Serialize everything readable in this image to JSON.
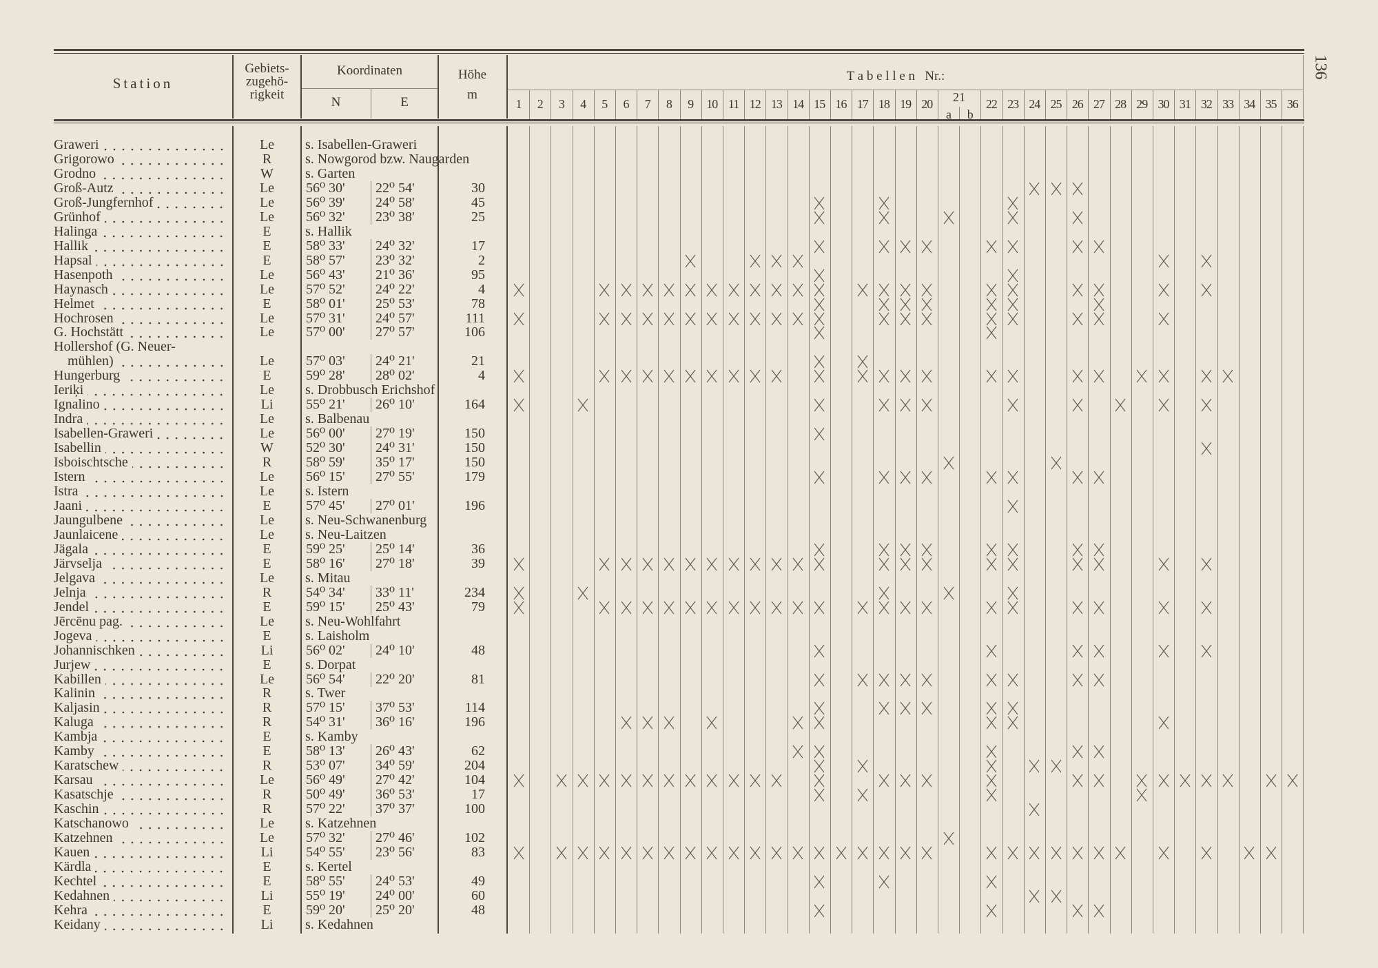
{
  "page_number": "136",
  "header": {
    "station": "Station",
    "region_line1": "Gebiets-",
    "region_line2": "zugehö-",
    "region_line3": "rigkeit",
    "coordinates": "Koordinaten",
    "north": "N",
    "east": "E",
    "height": "Höhe",
    "height_unit": "m",
    "tables": "T a b e l l e n   Nr.:",
    "col21_group": "21"
  },
  "table_columns": [
    {
      "id": "1",
      "label": "1"
    },
    {
      "id": "2",
      "label": "2"
    },
    {
      "id": "3",
      "label": "3"
    },
    {
      "id": "4",
      "label": "4"
    },
    {
      "id": "5",
      "label": "5"
    },
    {
      "id": "6",
      "label": "6"
    },
    {
      "id": "7",
      "label": "7"
    },
    {
      "id": "8",
      "label": "8"
    },
    {
      "id": "9",
      "label": "9"
    },
    {
      "id": "10",
      "label": "10"
    },
    {
      "id": "11",
      "label": "11"
    },
    {
      "id": "12",
      "label": "12"
    },
    {
      "id": "13",
      "label": "13"
    },
    {
      "id": "14",
      "label": "14"
    },
    {
      "id": "15",
      "label": "15"
    },
    {
      "id": "16",
      "label": "16"
    },
    {
      "id": "17",
      "label": "17"
    },
    {
      "id": "18",
      "label": "18"
    },
    {
      "id": "19",
      "label": "19"
    },
    {
      "id": "20",
      "label": "20"
    },
    {
      "id": "21a",
      "label": "a"
    },
    {
      "id": "21b",
      "label": "b"
    },
    {
      "id": "22",
      "label": "22"
    },
    {
      "id": "23",
      "label": "23"
    },
    {
      "id": "24",
      "label": "24"
    },
    {
      "id": "25",
      "label": "25"
    },
    {
      "id": "26",
      "label": "26"
    },
    {
      "id": "27",
      "label": "27"
    },
    {
      "id": "28",
      "label": "28"
    },
    {
      "id": "29",
      "label": "29"
    },
    {
      "id": "30",
      "label": "30"
    },
    {
      "id": "31",
      "label": "31"
    },
    {
      "id": "32",
      "label": "32"
    },
    {
      "id": "33",
      "label": "33"
    },
    {
      "id": "34",
      "label": "34"
    },
    {
      "id": "35",
      "label": "35"
    },
    {
      "id": "36",
      "label": "36"
    }
  ],
  "rows": [
    {
      "station": "Graweri",
      "region": "Le",
      "ref": "s. Isabellen-Graweri",
      "tables": []
    },
    {
      "station": "Grigorowo",
      "region": "R",
      "ref": "s. Nowgorod bzw. Naugarden",
      "tables": []
    },
    {
      "station": "Grodno",
      "region": "W",
      "ref": "s. Garten",
      "tables": []
    },
    {
      "station": "Groß-Autz",
      "region": "Le",
      "n": "56⁰ 30'",
      "e": "22⁰ 54'",
      "height": "30",
      "tables": [
        "24",
        "25",
        "26"
      ]
    },
    {
      "station": "Groß-Jungfernhof",
      "region": "Le",
      "n": "56⁰ 39'",
      "e": "24⁰ 58'",
      "height": "45",
      "tables": [
        "15",
        "18",
        "23"
      ]
    },
    {
      "station": "Grünhof",
      "region": "Le",
      "n": "56⁰ 32'",
      "e": "23⁰ 38'",
      "height": "25",
      "tables": [
        "15",
        "18",
        "21a",
        "23",
        "26"
      ]
    },
    {
      "station": "Halinga",
      "region": "E",
      "ref": "s. Hallik",
      "tables": []
    },
    {
      "station": "Hallik",
      "region": "E",
      "n": "58⁰ 33'",
      "e": "24⁰ 32'",
      "height": "17",
      "tables": [
        "15",
        "18",
        "19",
        "20",
        "22",
        "23",
        "26",
        "27"
      ]
    },
    {
      "station": "Hapsal",
      "region": "E",
      "n": "58⁰ 57'",
      "e": "23⁰ 32'",
      "height": "2",
      "tables": [
        "9",
        "12",
        "13",
        "14",
        "30",
        "32"
      ]
    },
    {
      "station": "Hasenpoth",
      "region": "Le",
      "n": "56⁰ 43'",
      "e": "21⁰ 36'",
      "height": "95",
      "tables": [
        "15",
        "23"
      ]
    },
    {
      "station": "Haynasch",
      "region": "Le",
      "n": "57⁰ 52'",
      "e": "24⁰ 22'",
      "height": "4",
      "tables": [
        "1",
        "5",
        "6",
        "7",
        "8",
        "9",
        "10",
        "11",
        "12",
        "13",
        "14",
        "15",
        "17",
        "18",
        "19",
        "20",
        "22",
        "23",
        "26",
        "27",
        "30",
        "32"
      ]
    },
    {
      "station": "Helmet",
      "region": "E",
      "n": "58⁰ 01'",
      "e": "25⁰ 53'",
      "height": "78",
      "tables": [
        "15",
        "18",
        "19",
        "20",
        "22",
        "23",
        "27"
      ]
    },
    {
      "station": "Hochrosen",
      "region": "Le",
      "n": "57⁰ 31'",
      "e": "24⁰ 57'",
      "height": "111",
      "tables": [
        "1",
        "5",
        "6",
        "7",
        "8",
        "9",
        "10",
        "11",
        "12",
        "13",
        "14",
        "15",
        "18",
        "19",
        "20",
        "22",
        "23",
        "26",
        "27",
        "30"
      ]
    },
    {
      "station": "G. Hochstätt",
      "region": "Le",
      "n": "57⁰ 00'",
      "e": "27⁰ 57'",
      "height": "106",
      "tables": [
        "15",
        "22"
      ]
    },
    {
      "station": "Hollershof (G. Neuer-",
      "station_cont": "mühlen)",
      "region": "Le",
      "n": "57⁰ 03'",
      "e": "24⁰ 21'",
      "height": "21",
      "tables": [
        "15",
        "17"
      ]
    },
    {
      "station": "Hungerburg",
      "region": "E",
      "n": "59⁰ 28'",
      "e": "28⁰ 02'",
      "height": "4",
      "tables": [
        "1",
        "5",
        "6",
        "7",
        "8",
        "9",
        "10",
        "11",
        "12",
        "13",
        "15",
        "17",
        "18",
        "19",
        "20",
        "22",
        "23",
        "26",
        "27",
        "29",
        "30",
        "32",
        "33"
      ]
    },
    {
      "station": "Ieriķi",
      "region": "Le",
      "ref": "s. Drobbusch Erichshof",
      "tables": []
    },
    {
      "station": "Ignalino",
      "region": "Li",
      "n": "55⁰ 21'",
      "e": "26⁰ 10'",
      "height": "164",
      "tables": [
        "1",
        "4",
        "15",
        "18",
        "19",
        "20",
        "23",
        "26",
        "28",
        "30",
        "32"
      ]
    },
    {
      "station": "Indra",
      "region": "Le",
      "ref": "s. Balbenau",
      "tables": []
    },
    {
      "station": "Isabellen-Graweri",
      "region": "Le",
      "n": "56⁰ 00'",
      "e": "27⁰ 19'",
      "height": "150",
      "tables": [
        "15"
      ]
    },
    {
      "station": "Isabellin",
      "region": "W",
      "n": "52⁰ 30'",
      "e": "24⁰ 31'",
      "height": "150",
      "tables": [
        "32"
      ]
    },
    {
      "station": "Isboischtsche",
      "region": "R",
      "n": "58⁰ 59'",
      "e": "35⁰ 17'",
      "height": "150",
      "tables": [
        "21a",
        "25"
      ]
    },
    {
      "station": "Istern",
      "region": "Le",
      "n": "56⁰ 15'",
      "e": "27⁰ 55'",
      "height": "179",
      "tables": [
        "15",
        "18",
        "19",
        "20",
        "22",
        "23",
        "26",
        "27"
      ]
    },
    {
      "station": "Istra",
      "region": "Le",
      "ref": "s. Istern",
      "tables": []
    },
    {
      "station": "Jaani",
      "region": "E",
      "n": "57⁰ 45'",
      "e": "27⁰ 01'",
      "height": "196",
      "tables": [
        "23"
      ]
    },
    {
      "station": "Jaungulbene",
      "region": "Le",
      "ref": "s. Neu-Schwanenburg",
      "tables": []
    },
    {
      "station": "Jaunlaicene",
      "region": "Le",
      "ref": "s. Neu-Laitzen",
      "tables": []
    },
    {
      "station": "Jägala",
      "region": "E",
      "n": "59⁰ 25'",
      "e": "25⁰ 14'",
      "height": "36",
      "tables": [
        "15",
        "18",
        "19",
        "20",
        "22",
        "23",
        "26",
        "27"
      ]
    },
    {
      "station": "Järvselja",
      "region": "E",
      "n": "58⁰ 16'",
      "e": "27⁰ 18'",
      "height": "39",
      "tables": [
        "1",
        "5",
        "6",
        "7",
        "8",
        "9",
        "10",
        "11",
        "12",
        "13",
        "14",
        "15",
        "18",
        "19",
        "20",
        "22",
        "23",
        "26",
        "27",
        "30",
        "32"
      ]
    },
    {
      "station": "Jelgava",
      "region": "Le",
      "ref": "s. Mitau",
      "tables": []
    },
    {
      "station": "Jelnja",
      "region": "R",
      "n": "54⁰ 34'",
      "e": "33⁰ 11'",
      "height": "234",
      "tables": [
        "1",
        "4",
        "18",
        "21a",
        "23"
      ]
    },
    {
      "station": "Jendel",
      "region": "E",
      "n": "59⁰ 15'",
      "e": "25⁰ 43'",
      "height": "79",
      "tables": [
        "1",
        "5",
        "6",
        "7",
        "8",
        "9",
        "10",
        "11",
        "12",
        "13",
        "14",
        "15",
        "17",
        "18",
        "19",
        "20",
        "22",
        "23",
        "26",
        "27",
        "30",
        "32"
      ]
    },
    {
      "station": "Jērcēnu pag.",
      "region": "Le",
      "ref": "s. Neu-Wohlfahrt",
      "tables": []
    },
    {
      "station": "Jogeva",
      "region": "E",
      "ref": "s. Laisholm",
      "tables": []
    },
    {
      "station": "Johannischken",
      "region": "Li",
      "n": "56⁰ 02'",
      "e": "24⁰ 10'",
      "height": "48",
      "tables": [
        "15",
        "22",
        "26",
        "27",
        "30",
        "32"
      ]
    },
    {
      "station": "Jurjew",
      "region": "E",
      "ref": "s. Dorpat",
      "tables": []
    },
    {
      "station": "Kabillen",
      "region": "Le",
      "n": "56⁰ 54'",
      "e": "22⁰ 20'",
      "height": "81",
      "tables": [
        "15",
        "17",
        "18",
        "19",
        "20",
        "22",
        "23",
        "26",
        "27"
      ]
    },
    {
      "station": "Kalinin",
      "region": "R",
      "ref": "s. Twer",
      "tables": []
    },
    {
      "station": "Kaljasin",
      "region": "R",
      "n": "57⁰ 15'",
      "e": "37⁰ 53'",
      "height": "114",
      "tables": [
        "15",
        "18",
        "19",
        "20",
        "22",
        "23"
      ]
    },
    {
      "station": "Kaluga",
      "region": "R",
      "n": "54⁰ 31'",
      "e": "36⁰ 16'",
      "height": "196",
      "tables": [
        "6",
        "7",
        "8",
        "10",
        "14",
        "15",
        "22",
        "23",
        "30"
      ]
    },
    {
      "station": "Kambja",
      "region": "E",
      "ref": "s. Kamby",
      "tables": []
    },
    {
      "station": "Kamby",
      "region": "E",
      "n": "58⁰ 13'",
      "e": "26⁰ 43'",
      "height": "62",
      "tables": [
        "14",
        "15",
        "22",
        "26",
        "27"
      ]
    },
    {
      "station": "Karatschew",
      "region": "R",
      "n": "53⁰ 07'",
      "e": "34⁰ 59'",
      "height": "204",
      "tables": [
        "15",
        "17",
        "22",
        "24",
        "25"
      ]
    },
    {
      "station": "Karsau",
      "region": "Le",
      "n": "56⁰ 49'",
      "e": "27⁰ 42'",
      "height": "104",
      "tables": [
        "1",
        "3",
        "4",
        "5",
        "6",
        "7",
        "8",
        "9",
        "10",
        "11",
        "12",
        "13",
        "15",
        "18",
        "19",
        "20",
        "22",
        "26",
        "27",
        "29",
        "30",
        "31",
        "32",
        "33",
        "35",
        "36"
      ]
    },
    {
      "station": "Kasatschje",
      "region": "R",
      "n": "50⁰ 49'",
      "e": "36⁰ 53'",
      "height": "17",
      "tables": [
        "15",
        "17",
        "22",
        "29"
      ]
    },
    {
      "station": "Kaschin",
      "region": "R",
      "n": "57⁰ 22'",
      "e": "37⁰ 37'",
      "height": "100",
      "tables": [
        "24"
      ]
    },
    {
      "station": "Katschanowo",
      "region": "Le",
      "ref": "s. Katzehnen",
      "tables": []
    },
    {
      "station": "Katzehnen",
      "region": "Le",
      "n": "57⁰ 32'",
      "e": "27⁰ 46'",
      "height": "102",
      "tables": [
        "21a"
      ]
    },
    {
      "station": "Kauen",
      "region": "Li",
      "n": "54⁰ 55'",
      "e": "23⁰ 56'",
      "height": "83",
      "tables": [
        "1",
        "3",
        "4",
        "5",
        "6",
        "7",
        "8",
        "9",
        "10",
        "11",
        "12",
        "13",
        "14",
        "15",
        "16",
        "17",
        "18",
        "19",
        "20",
        "22",
        "23",
        "24",
        "25",
        "26",
        "27",
        "28",
        "30",
        "32",
        "34",
        "35"
      ]
    },
    {
      "station": "Kärdla",
      "region": "E",
      "ref": "s. Kertel",
      "tables": []
    },
    {
      "station": "Kechtel",
      "region": "E",
      "n": "58⁰ 55'",
      "e": "24⁰ 53'",
      "height": "49",
      "tables": [
        "15",
        "18",
        "22"
      ]
    },
    {
      "station": "Kedahnen",
      "region": "Li",
      "n": "55⁰ 19'",
      "e": "24⁰ 00'",
      "height": "60",
      "tables": [
        "24",
        "25"
      ]
    },
    {
      "station": "Kehra",
      "region": "E",
      "n": "59⁰ 20'",
      "e": "25⁰ 20'",
      "height": "48",
      "tables": [
        "15",
        "22",
        "26",
        "27"
      ]
    },
    {
      "station": "Keidany",
      "region": "Li",
      "ref": "s. Kedahnen",
      "tables": []
    }
  ]
}
